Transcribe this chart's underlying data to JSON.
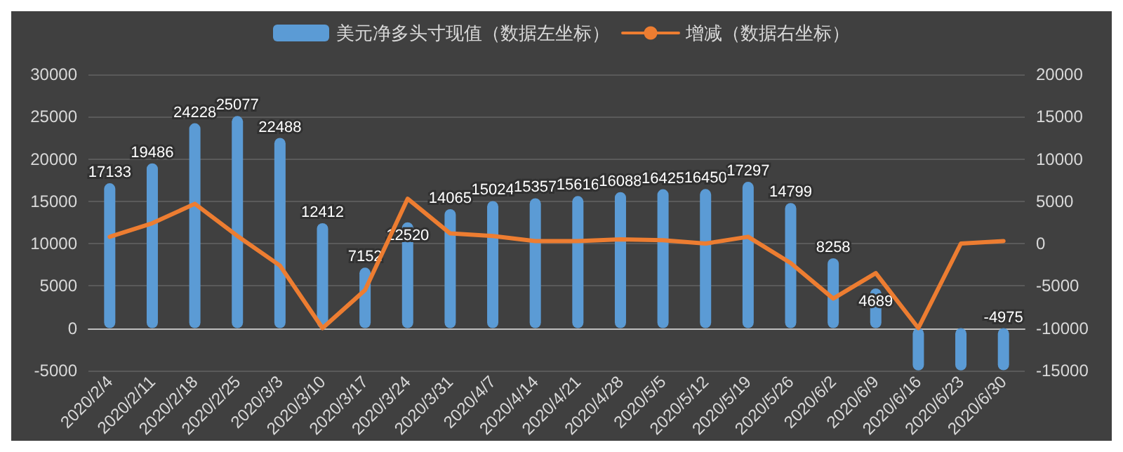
{
  "chart_data": {
    "type": "bar",
    "categories": [
      "2020/2/4",
      "2020/2/11",
      "2020/2/18",
      "2020/2/25",
      "2020/3/3",
      "2020/3/10",
      "2020/3/17",
      "2020/3/24",
      "2020/3/31",
      "2020/4/7",
      "2020/4/14",
      "2020/4/21",
      "2020/4/28",
      "2020/5/5",
      "2020/5/12",
      "2020/5/19",
      "2020/5/26",
      "2020/6/2",
      "2020/6/9",
      "2020/6/16",
      "2020/6/23",
      "2020/6/30"
    ],
    "series": [
      {
        "name": "美元净多头寸现值（数据左坐标）",
        "color": "#5b9bd5",
        "values": [
          17133,
          19486,
          24228,
          25077,
          22488,
          12412,
          7152,
          12520,
          14065,
          15024,
          15357,
          15616,
          16088,
          16425,
          16450,
          17297,
          14799,
          8258,
          4689,
          -5000,
          -5000,
          -4975
        ],
        "value_labels": [
          "17133",
          "19486",
          "24228",
          "25077",
          "22488",
          "12412",
          "7152",
          "12520",
          "14065",
          "15024",
          "15357",
          "15616",
          "16088",
          "16425",
          "16450",
          "17297",
          "14799",
          "8258",
          "4689",
          null,
          null,
          "-4975"
        ]
      },
      {
        "name": "增减（数据右坐标）",
        "type": "line",
        "axis": "y2",
        "color": "#ed7d31",
        "values": [
          800,
          2400,
          4700,
          900,
          -2600,
          -10000,
          -5500,
          5300,
          1200,
          900,
          300,
          300,
          500,
          400,
          0,
          800,
          -2300,
          -6500,
          -3500,
          -10000,
          0,
          300
        ]
      }
    ],
    "ylim": [
      -5000,
      30000
    ],
    "yticks": [
      -5000,
      0,
      5000,
      10000,
      15000,
      20000,
      25000,
      30000
    ],
    "y2lim": [
      -15000,
      20000
    ],
    "y2ticks": [
      -15000,
      -10000,
      -5000,
      0,
      5000,
      10000,
      15000,
      20000
    ],
    "grid": "y",
    "legend": "top",
    "marker": "none"
  }
}
